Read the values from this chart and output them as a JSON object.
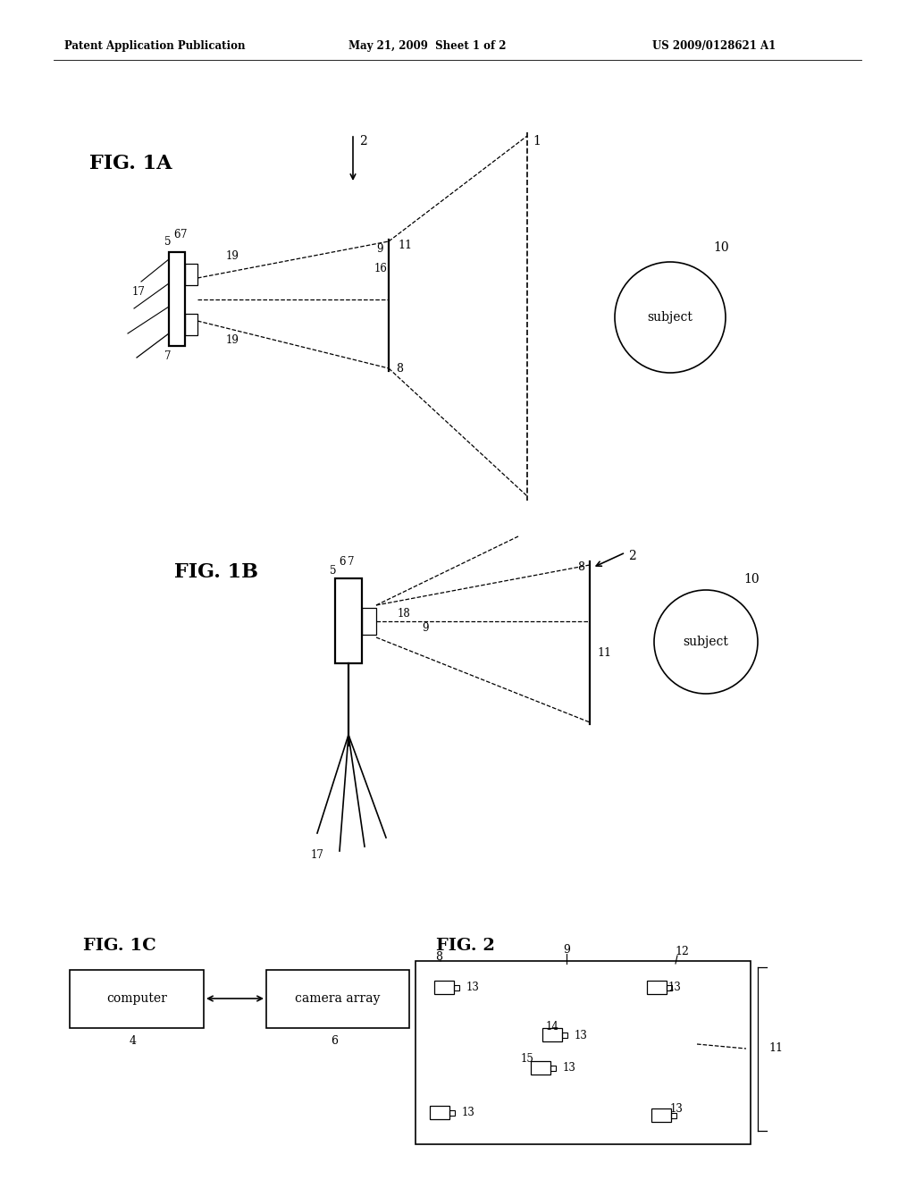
{
  "bg": "#ffffff",
  "black": "#000000",
  "header_left": "Patent Application Publication",
  "header_mid": "May 21, 2009  Sheet 1 of 2",
  "header_right": "US 2009/0128621 A1",
  "fig1a": "FIG. 1A",
  "fig1b": "FIG. 1B",
  "fig1c": "FIG. 1C",
  "fig2": "FIG. 2"
}
